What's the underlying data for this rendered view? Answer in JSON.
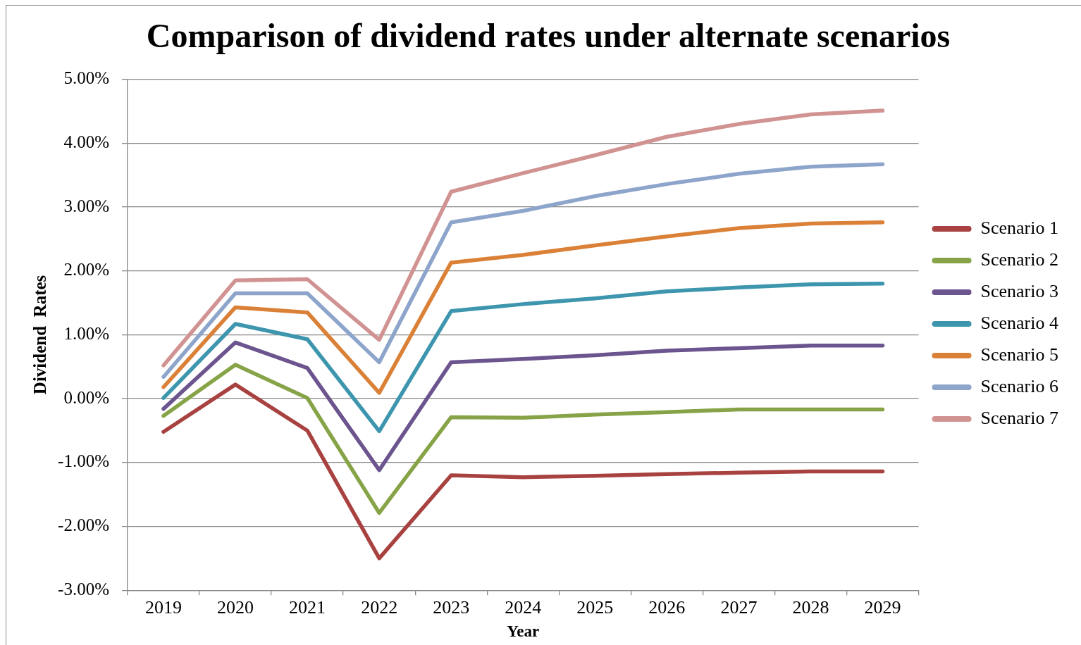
{
  "chart_data": {
    "type": "line",
    "title": "Comparison of dividend rates under alternate scenarios",
    "xlabel": "Year",
    "ylabel": "Dividend  Rates",
    "categories": [
      "2019",
      "2020",
      "2021",
      "2022",
      "2023",
      "2024",
      "2025",
      "2026",
      "2027",
      "2028",
      "2029"
    ],
    "ylim": [
      -3,
      5
    ],
    "yticks": [
      {
        "value": -3,
        "label": "-3.00%"
      },
      {
        "value": -2,
        "label": "-2.00%"
      },
      {
        "value": -1,
        "label": "-1.00%"
      },
      {
        "value": 0,
        "label": "0.00%"
      },
      {
        "value": 1,
        "label": "1.00%"
      },
      {
        "value": 2,
        "label": "2.00%"
      },
      {
        "value": 3,
        "label": "3.00%"
      },
      {
        "value": 4,
        "label": "4.00%"
      },
      {
        "value": 5,
        "label": "5.00%"
      }
    ],
    "grid": "y",
    "legend": "right",
    "marker": "none",
    "line_style": "solid",
    "series": [
      {
        "name": "Scenario 1",
        "color": "#a84240",
        "values": [
          -0.52,
          0.22,
          -0.5,
          -2.5,
          -1.2,
          -1.23,
          -1.21,
          -1.18,
          -1.16,
          -1.14,
          -1.14
        ]
      },
      {
        "name": "Scenario 2",
        "color": "#86a447",
        "values": [
          -0.27,
          0.53,
          0.01,
          -1.79,
          -0.29,
          -0.3,
          -0.25,
          -0.21,
          -0.17,
          -0.17,
          -0.17
        ]
      },
      {
        "name": "Scenario 3",
        "color": "#6c548e",
        "values": [
          -0.16,
          0.88,
          0.48,
          -1.12,
          0.57,
          0.62,
          0.68,
          0.75,
          0.79,
          0.83,
          0.83
        ]
      },
      {
        "name": "Scenario 4",
        "color": "#3d96ae",
        "values": [
          0.01,
          1.17,
          0.93,
          -0.51,
          1.37,
          1.48,
          1.57,
          1.68,
          1.74,
          1.79,
          1.8
        ]
      },
      {
        "name": "Scenario 5",
        "color": "#da8137",
        "values": [
          0.18,
          1.43,
          1.35,
          0.09,
          2.13,
          2.25,
          2.4,
          2.54,
          2.67,
          2.74,
          2.76
        ]
      },
      {
        "name": "Scenario 6",
        "color": "#8ea5cb",
        "values": [
          0.34,
          1.65,
          1.65,
          0.57,
          2.76,
          2.94,
          3.17,
          3.36,
          3.52,
          3.63,
          3.67
        ]
      },
      {
        "name": "Scenario 7",
        "color": "#d19392",
        "values": [
          0.52,
          1.85,
          1.87,
          0.92,
          3.24,
          3.53,
          3.81,
          4.1,
          4.3,
          4.45,
          4.51
        ]
      }
    ]
  }
}
